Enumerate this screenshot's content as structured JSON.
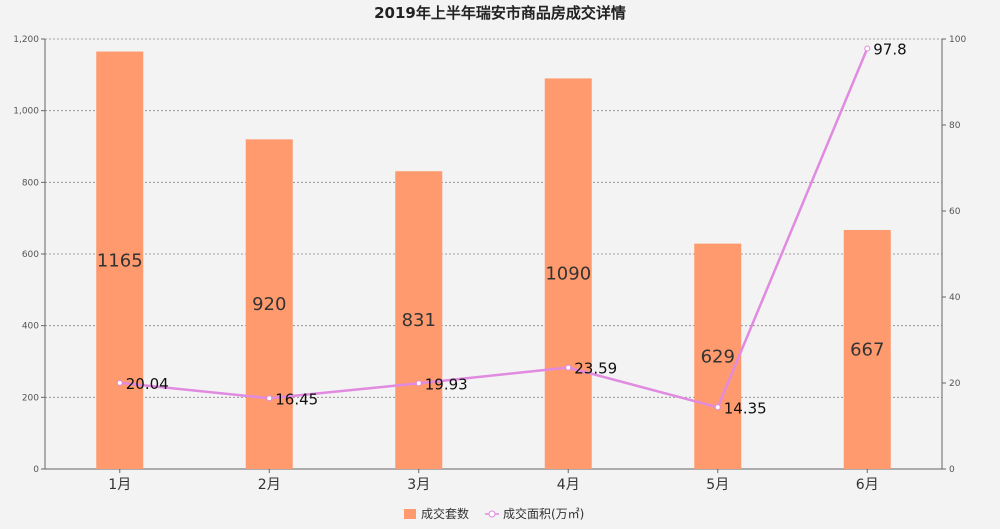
{
  "chart_data": {
    "type": "bar",
    "title": "2019年上半年瑞安市商品房成交详情",
    "categories": [
      "1月",
      "2月",
      "3月",
      "4月",
      "5月",
      "6月"
    ],
    "series": [
      {
        "name": "成交套数",
        "type": "bar",
        "axis": "left",
        "values": [
          1165,
          920,
          831,
          1090,
          629,
          667
        ],
        "color": "#ff9a6e"
      },
      {
        "name": "成交面积(万㎡)",
        "type": "line",
        "axis": "right",
        "values": [
          20.04,
          16.45,
          19.93,
          23.59,
          14.35,
          97.8
        ],
        "color": "#e08ae0"
      }
    ],
    "y_left": {
      "min": 0,
      "max": 1200,
      "ticks": [
        "0",
        "200",
        "400",
        "600",
        "800",
        "1,000",
        "1,200"
      ]
    },
    "y_right": {
      "min": 0,
      "max": 100,
      "ticks": [
        "0",
        "20",
        "40",
        "60",
        "80",
        "100"
      ]
    },
    "grid": true,
    "legend_position": "bottom-center"
  }
}
